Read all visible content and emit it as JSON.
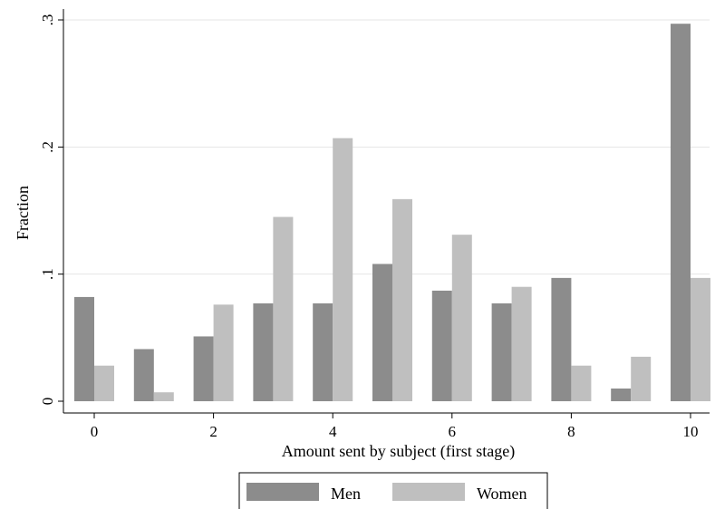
{
  "chart_data": {
    "type": "bar",
    "xlabel": "Amount sent by subject (first stage)",
    "ylabel": "Fraction",
    "x": [
      0,
      1,
      2,
      3,
      4,
      5,
      6,
      7,
      8,
      9,
      10
    ],
    "x_ticks": [
      0,
      2,
      4,
      6,
      8,
      10
    ],
    "y_ticks": [
      0,
      0.1,
      0.2,
      0.3
    ],
    "y_tick_labels": [
      "0",
      ".1",
      ".2",
      ".3"
    ],
    "ylim": [
      0,
      0.3
    ],
    "grid": true,
    "legend_position": "bottom",
    "series": [
      {
        "name": "Men",
        "color": "#8c8c8c",
        "values": [
          0.082,
          0.041,
          0.051,
          0.077,
          0.077,
          0.108,
          0.087,
          0.077,
          0.097,
          0.01,
          0.297
        ]
      },
      {
        "name": "Women",
        "color": "#bfbfbf",
        "values": [
          0.028,
          0.007,
          0.076,
          0.145,
          0.207,
          0.159,
          0.131,
          0.09,
          0.028,
          0.035,
          0.097
        ]
      }
    ]
  }
}
